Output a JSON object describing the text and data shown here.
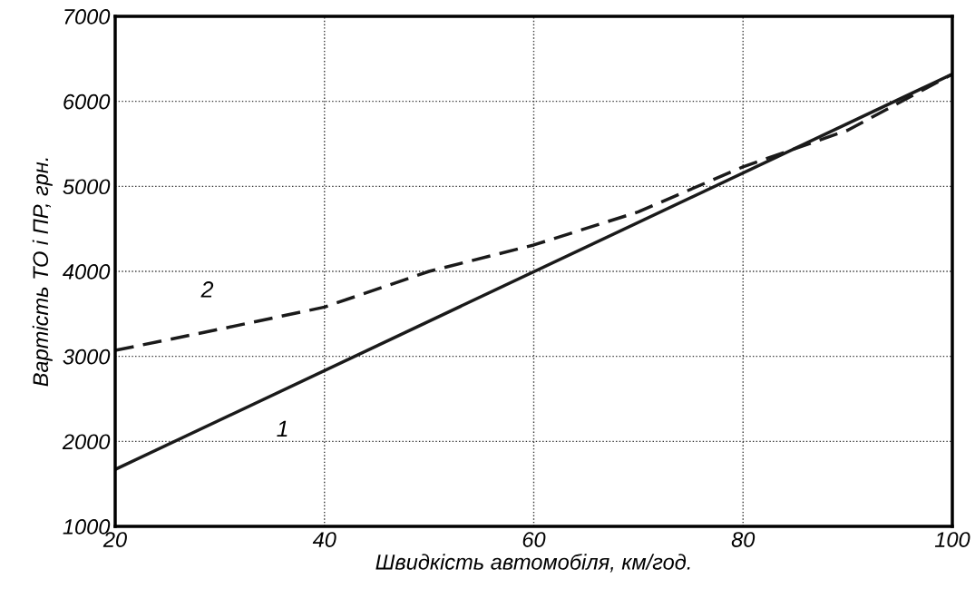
{
  "chart_data": {
    "type": "line",
    "xlabel": "Швидкість автомобіля, км/год.",
    "ylabel": "Вартість ТО і ПР, грн.",
    "xlim": [
      20,
      100
    ],
    "xticks": [
      20,
      40,
      60,
      80,
      100
    ],
    "ylim": [
      1000,
      7000
    ],
    "yticks": [
      1000,
      2000,
      3000,
      4000,
      5000,
      6000,
      7000
    ],
    "grid": true,
    "marker": "none",
    "series": [
      {
        "name": "1",
        "color": "#1a1a1a",
        "line_style": "solid",
        "x": [
          20,
          100
        ],
        "values": [
          1670,
          6320
        ]
      },
      {
        "name": "2",
        "color": "#1a1a1a",
        "line_style": "dashed",
        "x": [
          20,
          30,
          40,
          50,
          60,
          70,
          80,
          90,
          100
        ],
        "values": [
          3070,
          3320,
          3580,
          4000,
          4310,
          4700,
          5230,
          5660,
          6320
        ]
      }
    ]
  }
}
